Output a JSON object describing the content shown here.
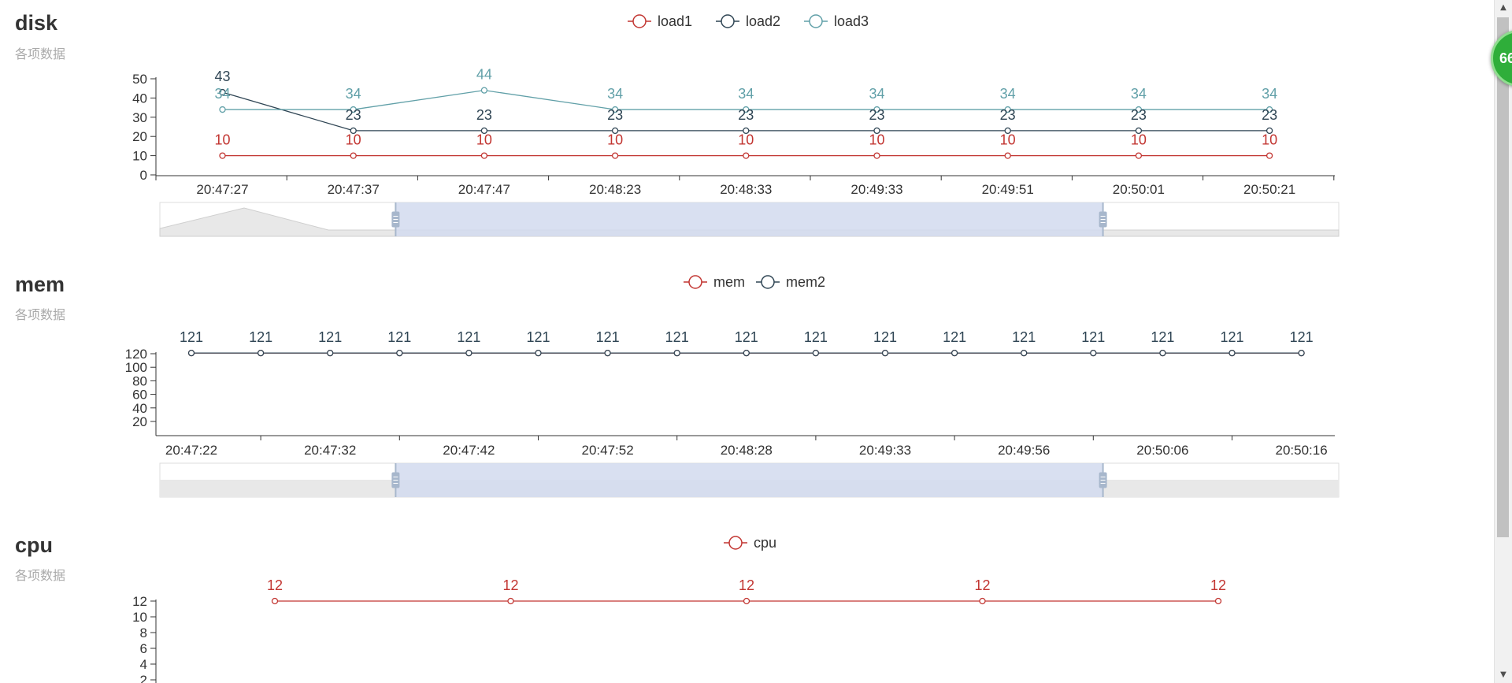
{
  "subtitle_text": "各项数据",
  "floating_badge": "66",
  "colors": {
    "red": "#c23531",
    "dark": "#2f4554",
    "teal": "#61a0a8",
    "axis": "#333333",
    "zoom_fill": "#d2dbee",
    "zoom_handle": "#a7b7cc"
  },
  "chart_data": [
    {
      "type": "line",
      "title": "disk",
      "subtitle": "各项数据",
      "categories": [
        "20:47:27",
        "20:47:37",
        "20:47:47",
        "20:48:23",
        "20:48:33",
        "20:49:33",
        "20:49:51",
        "20:50:01",
        "20:50:21"
      ],
      "series": [
        {
          "name": "load1",
          "color": "#c23531",
          "values": [
            10,
            10,
            10,
            10,
            10,
            10,
            10,
            10,
            10
          ]
        },
        {
          "name": "load2",
          "color": "#2f4554",
          "values": [
            43,
            23,
            23,
            23,
            23,
            23,
            23,
            23,
            23
          ]
        },
        {
          "name": "load3",
          "color": "#61a0a8",
          "values": [
            34,
            34,
            44,
            34,
            34,
            34,
            34,
            34,
            34
          ]
        }
      ],
      "yticks": [
        0,
        10,
        20,
        30,
        40,
        50
      ],
      "ylim": [
        0,
        50
      ],
      "legend": "top-center",
      "data_zoom": {
        "start": 20,
        "end": 80
      }
    },
    {
      "type": "line",
      "title": "mem",
      "subtitle": "各项数据",
      "categories": [
        "20:47:22",
        "",
        "20:47:32",
        "",
        "20:47:42",
        "",
        "20:47:52",
        "",
        "20:48:28",
        "",
        "20:49:33",
        "",
        "20:49:56",
        "",
        "20:50:06",
        "",
        "20:50:16"
      ],
      "series": [
        {
          "name": "mem",
          "color": "#c23531",
          "values": [
            121,
            121,
            121,
            121,
            121,
            121,
            121,
            121,
            121,
            121,
            121,
            121,
            121,
            121,
            121,
            121,
            121
          ]
        },
        {
          "name": "mem2",
          "color": "#2f4554",
          "values": [
            121,
            121,
            121,
            121,
            121,
            121,
            121,
            121,
            121,
            121,
            121,
            121,
            121,
            121,
            121,
            121,
            121
          ]
        }
      ],
      "yticks": [
        20,
        40,
        60,
        80,
        100,
        120
      ],
      "ylim": [
        0,
        140
      ],
      "legend": "top-center",
      "data_zoom": {
        "start": 20,
        "end": 80
      }
    },
    {
      "type": "line",
      "title": "cpu",
      "subtitle": "各项数据",
      "categories": [
        "",
        "",
        "",
        "",
        ""
      ],
      "series": [
        {
          "name": "cpu",
          "color": "#c23531",
          "values": [
            12,
            12,
            12,
            12,
            12
          ]
        }
      ],
      "yticks": [
        2,
        4,
        6,
        8,
        10,
        12
      ],
      "ylim": [
        0,
        12
      ],
      "legend": "top-center"
    }
  ]
}
